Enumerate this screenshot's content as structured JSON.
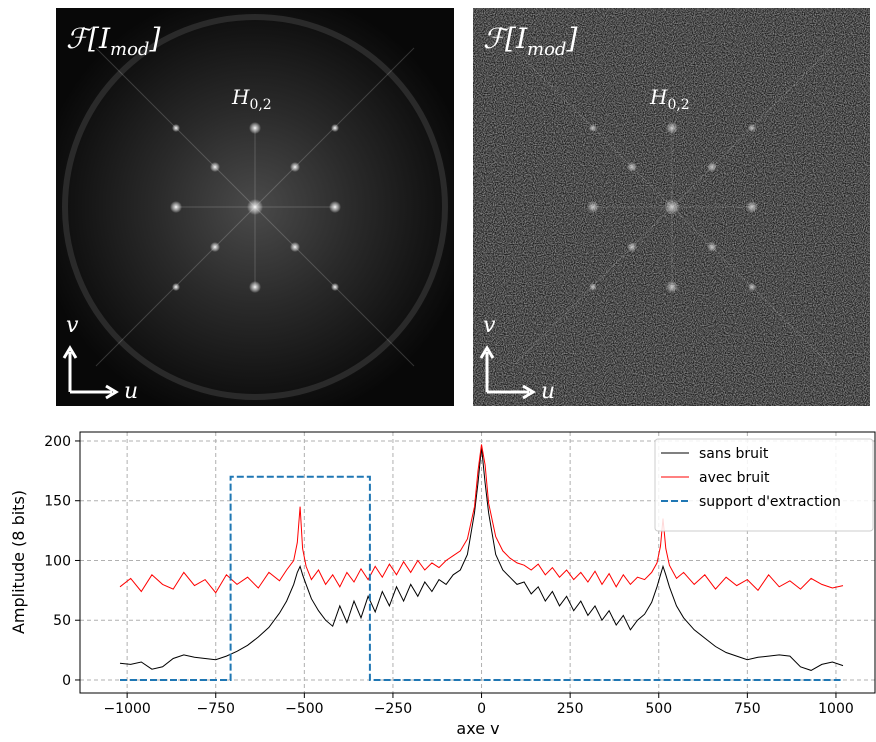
{
  "panels": [
    {
      "title": [
        "ℱ[",
        "I",
        "mod",
        "]"
      ],
      "peak_label": [
        "H",
        "0,2"
      ],
      "v_axis": "v",
      "u_axis": "u"
    },
    {
      "title": [
        "ℱ[",
        "I",
        "mod",
        "]"
      ],
      "peak_label": [
        "H",
        "0,2"
      ],
      "v_axis": "v",
      "u_axis": "u"
    }
  ],
  "chart_data": {
    "type": "line",
    "xlabel": "axe v",
    "ylabel": "Amplitude (8 bits)",
    "x": [
      -1020,
      -990,
      -960,
      -930,
      -900,
      -870,
      -840,
      -810,
      -780,
      -750,
      -720,
      -690,
      -660,
      -630,
      -600,
      -570,
      -550,
      -530,
      -520,
      -512,
      -505,
      -495,
      -480,
      -460,
      -440,
      -420,
      -400,
      -380,
      -360,
      -340,
      -320,
      -300,
      -280,
      -260,
      -240,
      -220,
      -200,
      -180,
      -160,
      -140,
      -120,
      -100,
      -80,
      -60,
      -40,
      -20,
      -10,
      0,
      10,
      20,
      40,
      60,
      80,
      100,
      120,
      140,
      160,
      180,
      200,
      220,
      240,
      260,
      280,
      300,
      320,
      340,
      360,
      380,
      400,
      420,
      440,
      460,
      480,
      495,
      505,
      512,
      520,
      530,
      550,
      570,
      600,
      630,
      660,
      690,
      720,
      750,
      780,
      810,
      840,
      870,
      900,
      930,
      960,
      990,
      1020
    ],
    "series": [
      {
        "name": "sans bruit",
        "color": "#000000",
        "values": [
          14,
          13,
          15,
          9,
          11,
          18,
          21,
          19,
          18,
          17,
          20,
          24,
          29,
          36,
          44,
          56,
          66,
          80,
          90,
          95,
          88,
          80,
          68,
          58,
          50,
          45,
          62,
          48,
          66,
          52,
          70,
          57,
          74,
          62,
          78,
          66,
          80,
          70,
          82,
          74,
          84,
          80,
          88,
          92,
          105,
          140,
          165,
          195,
          165,
          140,
          105,
          92,
          86,
          80,
          82,
          72,
          78,
          66,
          74,
          62,
          70,
          58,
          66,
          54,
          62,
          50,
          58,
          46,
          54,
          42,
          50,
          55,
          65,
          78,
          88,
          95,
          88,
          78,
          62,
          52,
          42,
          35,
          28,
          23,
          20,
          17,
          19,
          20,
          21,
          20,
          11,
          8,
          13,
          15,
          12
        ]
      },
      {
        "name": "avec bruit",
        "color": "#ff0000",
        "values": [
          78,
          85,
          74,
          88,
          80,
          76,
          90,
          79,
          84,
          73,
          88,
          80,
          86,
          77,
          90,
          83,
          92,
          100,
          115,
          145,
          110,
          95,
          84,
          92,
          80,
          88,
          78,
          90,
          82,
          93,
          84,
          95,
          86,
          97,
          88,
          99,
          90,
          100,
          92,
          98,
          94,
          100,
          104,
          108,
          118,
          145,
          175,
          197,
          180,
          148,
          120,
          108,
          102,
          98,
          96,
          92,
          97,
          88,
          94,
          86,
          92,
          84,
          90,
          82,
          91,
          80,
          89,
          78,
          88,
          80,
          86,
          84,
          90,
          98,
          112,
          135,
          110,
          96,
          85,
          90,
          80,
          88,
          76,
          86,
          79,
          84,
          75,
          88,
          78,
          83,
          76,
          85,
          80,
          77,
          79
        ]
      },
      {
        "name": "support d'extraction",
        "color": "#1f77b4",
        "dashed": true,
        "x": [
          -1020,
          -708,
          -708,
          -315,
          -315,
          1020
        ],
        "values": [
          0,
          0,
          170,
          170,
          0,
          0
        ]
      }
    ],
    "xlim": [
      -1133,
      1113
    ],
    "ylim": [
      -10.9,
      207.5
    ],
    "xticks": [
      {
        "value": -1000,
        "label": "−1000"
      },
      {
        "value": -750,
        "label": "−750"
      },
      {
        "value": -500,
        "label": "−500"
      },
      {
        "value": -250,
        "label": "−250"
      },
      0,
      250,
      500,
      750,
      1000
    ],
    "yticks": [
      0,
      50,
      100,
      150,
      200
    ],
    "grid": true,
    "legend": "upper right"
  }
}
